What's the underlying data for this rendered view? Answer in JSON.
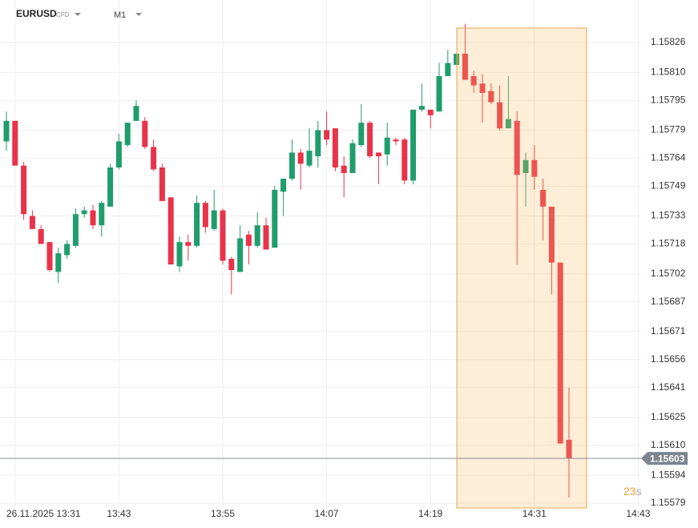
{
  "chart_data": {
    "type": "candlestick",
    "symbol": "EURUSD",
    "instrument_type": "CFD",
    "timeframe": "M1",
    "categories": [
      null,
      "26.11.2025 13:31",
      null,
      null,
      null,
      null,
      null,
      null,
      null,
      null,
      null,
      null,
      null,
      "13:43",
      null,
      null,
      null,
      null,
      null,
      null,
      null,
      null,
      null,
      null,
      null,
      "13:55",
      null,
      null,
      null,
      null,
      null,
      null,
      null,
      null,
      null,
      null,
      null,
      "14:07",
      null,
      null,
      null,
      null,
      null,
      null,
      null,
      null,
      null,
      null,
      null,
      "14:19",
      null,
      null,
      null,
      null,
      null,
      null,
      null,
      null,
      null,
      null,
      null,
      "14:31",
      null,
      null,
      null,
      null,
      null,
      null,
      null,
      null,
      null,
      null,
      null,
      "14:43"
    ],
    "open": [
      1.15773,
      1.15784,
      1.1576,
      1.15733,
      1.15726,
      1.15719,
      1.15703,
      1.15712,
      1.15717,
      1.15734,
      1.15736,
      1.15728,
      1.15738,
      1.15759,
      1.15771,
      1.15784,
      1.15784,
      1.1577,
      1.15759,
      1.15743,
      1.15706,
      1.15719,
      1.15717,
      1.1574,
      1.15726,
      1.15736,
      1.1571,
      1.15703,
      1.15723,
      1.15717,
      1.15728,
      1.15716,
      1.15746,
      1.15753,
      1.15767,
      1.1576,
      1.15765,
      1.15779,
      1.1578,
      1.1576,
      1.15756,
      1.15771,
      1.15783,
      1.15767,
      1.15766,
      1.15774,
      1.15774,
      1.15752,
      1.1579,
      1.1579,
      1.15789,
      1.15808,
      1.15814,
      1.1582,
      1.15808,
      1.15804,
      1.158,
      1.15794,
      1.1578,
      1.15784,
      1.15756,
      1.15763,
      1.15747,
      1.15738,
      1.15708,
      1.15613,
      null,
      null,
      null,
      null,
      null,
      null,
      null,
      null
    ],
    "high": [
      1.15789,
      1.15784,
      1.15762,
      1.15736,
      1.15728,
      1.15719,
      1.15716,
      1.1572,
      1.15737,
      1.15738,
      1.15739,
      1.15741,
      1.15761,
      1.15777,
      1.15783,
      1.15795,
      1.15786,
      1.15774,
      1.15761,
      1.15743,
      1.15722,
      1.15723,
      1.15744,
      1.15741,
      1.15747,
      1.15737,
      1.15711,
      1.15728,
      1.15725,
      1.15735,
      1.15732,
      1.15749,
      1.15753,
      1.15774,
      1.15769,
      1.1578,
      1.15784,
      1.15789,
      1.1578,
      1.15765,
      1.15774,
      1.15793,
      1.15784,
      1.15767,
      1.15783,
      1.15775,
      1.15775,
      1.1579,
      1.15804,
      1.1579,
      1.15815,
      1.15822,
      1.1582,
      1.15836,
      1.15811,
      1.15809,
      1.15804,
      1.15803,
      1.15808,
      1.15789,
      1.15767,
      1.15771,
      1.15753,
      1.15738,
      1.15708,
      1.15641,
      null,
      null,
      null,
      null,
      null,
      null,
      null,
      null
    ],
    "low": [
      1.15768,
      1.1576,
      1.15731,
      1.15726,
      1.15718,
      1.15703,
      1.15697,
      1.1571,
      1.15716,
      1.15732,
      1.15726,
      1.15722,
      1.15738,
      1.15758,
      1.1577,
      1.15784,
      1.15769,
      1.15757,
      1.15741,
      1.15707,
      1.15703,
      1.15709,
      1.15716,
      1.15724,
      1.15725,
      1.15707,
      1.15691,
      1.15703,
      1.15707,
      1.15716,
      1.15715,
      1.15716,
      1.15733,
      1.15752,
      1.15747,
      1.15759,
      1.15759,
      1.15771,
      1.15757,
      1.15743,
      1.15756,
      1.1577,
      1.15764,
      1.1575,
      1.1576,
      1.15771,
      1.1575,
      1.1575,
      1.15789,
      1.1578,
      1.15789,
      1.15808,
      1.15814,
      1.15806,
      1.15799,
      1.15783,
      1.15793,
      1.15779,
      1.1578,
      1.15707,
      1.15738,
      1.15747,
      1.1572,
      1.15691,
      1.15611,
      1.15582,
      null,
      null,
      null,
      null,
      null,
      null,
      null,
      null
    ],
    "close": [
      1.15784,
      1.1576,
      1.15734,
      1.15726,
      1.15718,
      1.15704,
      1.15713,
      1.15718,
      1.15734,
      1.15736,
      1.15728,
      1.1574,
      1.15759,
      1.15773,
      1.15783,
      1.15792,
      1.1577,
      1.15758,
      1.15741,
      1.15707,
      1.15719,
      1.15717,
      1.1574,
      1.15727,
      1.15736,
      1.15709,
      1.15704,
      1.15721,
      1.15717,
      1.15728,
      1.15715,
      1.15747,
      1.15753,
      1.15767,
      1.15761,
      1.15768,
      1.15779,
      1.15774,
      1.15759,
      1.15756,
      1.15772,
      1.15783,
      1.15765,
      1.15765,
      1.15775,
      1.15773,
      1.15752,
      1.1579,
      1.15792,
      1.15787,
      1.15808,
      1.15815,
      1.1582,
      1.15806,
      1.15803,
      1.15799,
      1.15794,
      1.1578,
      1.15785,
      1.15755,
      1.15763,
      1.15754,
      1.15738,
      1.15708,
      1.15611,
      1.15603,
      null,
      null,
      null,
      null,
      null,
      null,
      null,
      null
    ],
    "up_color": "#1f9d6c",
    "down_color": "#e8334a",
    "ylim": [
      1.155773,
      1.158488
    ],
    "yticks": [
      1.15826,
      {
        "value": 1.1581,
        "label": "1.15810"
      },
      1.15795,
      1.15779,
      1.15764,
      1.15749,
      1.15733,
      1.15718,
      1.15702,
      1.15687,
      1.15671,
      1.15656,
      1.15641,
      1.15625,
      {
        "value": 1.1561,
        "label": "1.15610"
      },
      1.15594,
      1.15579
    ],
    "grid": true,
    "last_price": 1.15603,
    "countdown": {
      "value": "23",
      "unit": "s"
    }
  }
}
